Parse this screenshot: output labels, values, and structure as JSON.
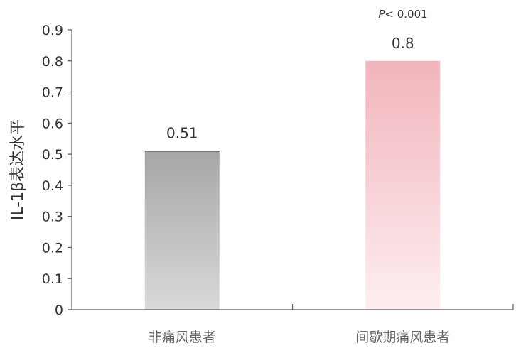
{
  "chart_data": {
    "type": "bar",
    "title": "",
    "xlabel": "",
    "ylabel": "IL-1β表达水平",
    "ylim": [
      0,
      0.9
    ],
    "yticks": [
      "0",
      "0.1",
      "0.2",
      "0.3",
      "0.4",
      "0.5",
      "0.6",
      "0.7",
      "0.8",
      "0.9"
    ],
    "categories": [
      "非痛风患者",
      "间歇期痛风患者"
    ],
    "values": [
      0.51,
      0.8
    ],
    "data_labels": [
      "0.51",
      "0.8"
    ],
    "annotation": {
      "p_symbol": "P",
      "p_text": "< 0.001"
    },
    "grid": false,
    "colors": {
      "bar1_top": "#a6a6a6",
      "bar1_bottom": "#d9d9d9",
      "bar2_top": "#f1b5bc",
      "bar2_bottom": "#fdeef0",
      "axis": "#595959"
    }
  }
}
